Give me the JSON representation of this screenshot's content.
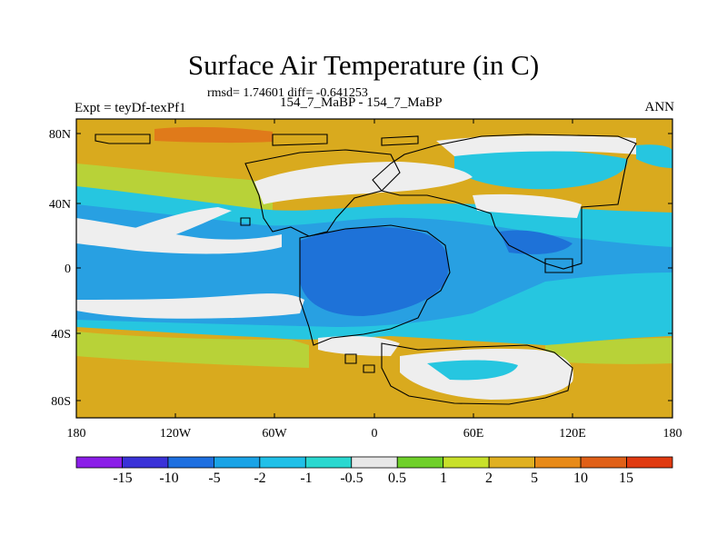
{
  "map": {
    "title": "Surface Air Temperature (in C)",
    "stats_line": "rmsd= 1.74601 diff= -0.641253",
    "left_label": "Expt = teyDf-texPf1",
    "center_label": "154_7_MaBP - 154_7_MaBP",
    "right_label": "ANN",
    "lat_labels": [
      "80N",
      "40N",
      "0",
      "40S",
      "80S"
    ],
    "lon_labels": [
      "180",
      "120W",
      "60W",
      "0",
      "60E",
      "120E",
      "180"
    ]
  },
  "colorbar": {
    "labels": [
      "-15",
      "-10",
      "-5",
      "-2",
      "-1",
      "-0.5",
      "0.5",
      "1",
      "2",
      "5",
      "10",
      "15"
    ],
    "colors": [
      "#8b1ee8",
      "#3a32d8",
      "#1e6fe0",
      "#1aa3e6",
      "#20c0e8",
      "#2ad8d0",
      "#e8e8e8",
      "#6fd02a",
      "#c8e02a",
      "#e0b020",
      "#e88a18",
      "#e06018",
      "#e03a10"
    ]
  },
  "legend_colors": {
    "background": "#d9aa1e",
    "warm_band": "#b8d238",
    "white_band": "#eeeeee",
    "cyan": "#26c6e0",
    "blue": "#28a0e2",
    "deep_blue": "#1e72d8",
    "orange": "#e07a1a",
    "green": "#7cd226"
  }
}
